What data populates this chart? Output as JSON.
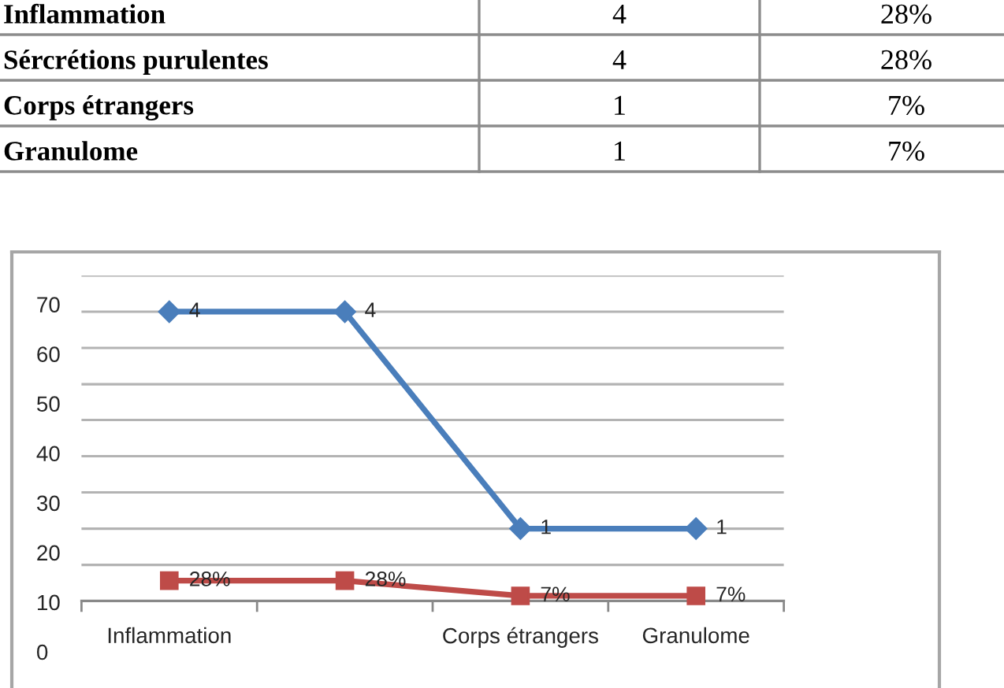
{
  "chart_data": {
    "type": "line",
    "categories": [
      "Inflammation",
      null,
      "Corps étrangers",
      "Granulome"
    ],
    "series": [
      {
        "axis": "y2",
        "color": "#4a7ebb",
        "marker": "diamond",
        "values": [
          4,
          4,
          1,
          1
        ],
        "value_labels": [
          "4",
          "4",
          "1",
          "1"
        ]
      },
      {
        "axis": "y2",
        "color": "#be4b48",
        "marker": "square",
        "values": [
          0.28,
          0.28,
          0.07,
          0.07
        ],
        "value_labels": [
          "28%",
          "28%",
          "7%",
          "7%"
        ]
      }
    ],
    "ylim": [
      0,
      75.8
    ],
    "yticks": [
      0,
      10,
      20,
      30,
      40,
      50,
      60,
      70,
      {
        "value": 17.5,
        "label": null
      },
      {
        "value": 24.8,
        "label": null
      },
      {
        "value": 32.1,
        "label": null
      },
      {
        "value": 39.4,
        "label": null
      },
      {
        "value": 46.7,
        "label": null
      },
      {
        "value": 53.9,
        "label": null
      },
      {
        "value": 61.2,
        "label": null
      },
      {
        "value": 68.5,
        "label": null
      },
      {
        "value": 75.8,
        "label": null
      }
    ],
    "y2lim": [
      0,
      4.5
    ],
    "grid": "y",
    "line_style": "solid",
    "annotations": [
      "Inflammation",
      "4",
      "28%",
      "Sércrétions purulentes",
      "4",
      "28%",
      "Corps étrangers",
      "1",
      "7%",
      "Granulome",
      "1",
      "7%"
    ]
  }
}
